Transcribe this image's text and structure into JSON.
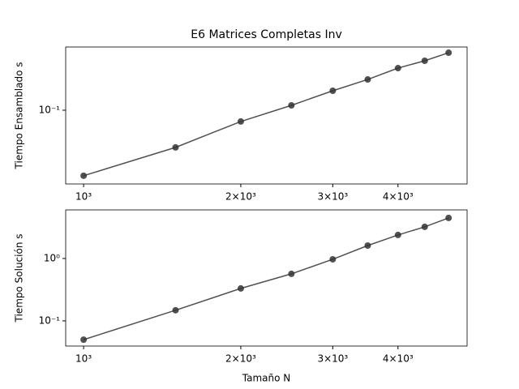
{
  "chart_data": [
    {
      "type": "line",
      "title": "E6 Matrices Completas Inv",
      "y_label": "Tiempo Ensamblado s",
      "x": [
        1000,
        1500,
        2000,
        2500,
        3000,
        3500,
        4000,
        4500,
        5000
      ],
      "series": [
        {
          "color": "#333333",
          "values": [
            0.0181,
            0.0379,
            0.0745,
            0.1135,
            0.166,
            0.223,
            0.3,
            0.363,
            0.448
          ]
        }
      ],
      "xscale": "log",
      "yscale": "log",
      "xlim": [
        924,
        5425
      ],
      "ylim": [
        0.0146,
        0.52
      ],
      "xticks": [
        {
          "value": 1000,
          "label": "10³"
        },
        {
          "value": 2000,
          "label": "2×10³"
        },
        {
          "value": 3000,
          "label": "3×10³"
        },
        {
          "value": 4000,
          "label": "4×10³"
        }
      ],
      "yticks": [
        {
          "value": 0.1,
          "label": "10⁻¹"
        }
      ]
    },
    {
      "type": "line",
      "y_label": "Tiempo Solución s",
      "x_label": "Tamaño N",
      "x": [
        1000,
        1500,
        2000,
        2500,
        3000,
        3500,
        4000,
        4500,
        5000
      ],
      "series": [
        {
          "color": "#333333",
          "values": [
            0.05,
            0.148,
            0.331,
            0.567,
            0.97,
            1.61,
            2.38,
            3.21,
            4.46
          ]
        }
      ],
      "xscale": "log",
      "yscale": "log",
      "xlim": [
        924,
        5425
      ],
      "ylim": [
        0.0395,
        6.0
      ],
      "xticks": [
        {
          "value": 1000,
          "label": "10³"
        },
        {
          "value": 2000,
          "label": "2×10³"
        },
        {
          "value": 3000,
          "label": "3×10³"
        },
        {
          "value": 4000,
          "label": "4×10³"
        }
      ],
      "yticks": [
        {
          "value": 0.1,
          "label": "10⁻¹"
        },
        {
          "value": 1,
          "label": "10⁰"
        }
      ]
    }
  ]
}
